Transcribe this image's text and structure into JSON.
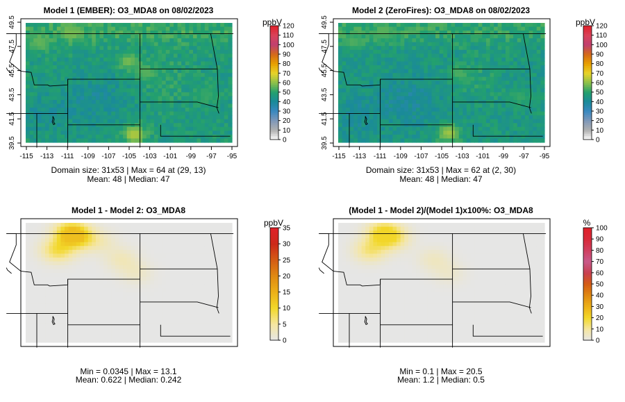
{
  "chart_data": [
    {
      "type": "heatmap",
      "title": "Model 1 (EMBER): O3_MDA8 on 08/02/2023",
      "unit": "ppbV",
      "x_ticks": [
        "-115",
        "-113",
        "-111",
        "-109",
        "-107",
        "-105",
        "-103",
        "-101",
        "-99",
        "-97",
        "-95"
      ],
      "y_ticks": [
        "39.5",
        "41.5",
        "43.5",
        "45.5",
        "47.5",
        "49.5"
      ],
      "xlim": [
        -115,
        -95
      ],
      "ylim": [
        39.5,
        50.0
      ],
      "colorbar_ticks": [
        0,
        10,
        20,
        30,
        40,
        50,
        60,
        70,
        80,
        90,
        100,
        110,
        120
      ],
      "colorbar_max": 120,
      "info_lines": [
        "Domain size: 31x53 | Max = 64 at (29, 13)",
        "Mean: 48 |  Median: 47"
      ],
      "grid": {
        "rows": 31,
        "cols": 53,
        "kind": "o3",
        "base": 47,
        "max": 64
      },
      "hotspots": [
        {
          "lon": -104.2,
          "lat": 40.2,
          "value": 64
        },
        {
          "lon": -110.5,
          "lat": 49.2,
          "value": 58
        },
        {
          "lon": -104.8,
          "lat": 46.6,
          "value": 58
        },
        {
          "lon": -103.0,
          "lat": 45.6,
          "value": 55
        },
        {
          "lon": -113.5,
          "lat": 48.3,
          "value": 56
        },
        {
          "lon": -97.0,
          "lat": 43.5,
          "value": 52
        }
      ]
    },
    {
      "type": "heatmap",
      "title": "Model 2 (ZeroFires): O3_MDA8 on 08/02/2023",
      "unit": "ppbV",
      "x_ticks": [
        "-115",
        "-113",
        "-111",
        "-109",
        "-107",
        "-105",
        "-103",
        "-101",
        "-99",
        "-97",
        "-95"
      ],
      "y_ticks": [
        "39.5",
        "41.5",
        "43.5",
        "45.5",
        "47.5",
        "49.5"
      ],
      "xlim": [
        -115,
        -95
      ],
      "ylim": [
        39.5,
        50.0
      ],
      "colorbar_ticks": [
        0,
        10,
        20,
        30,
        40,
        50,
        60,
        70,
        80,
        90,
        100,
        110,
        120
      ],
      "colorbar_max": 120,
      "info_lines": [
        "Domain size: 31x53 | Max = 62 at (2, 30)",
        "Mean: 48 |  Median: 47"
      ],
      "grid": {
        "rows": 31,
        "cols": 53,
        "kind": "o3",
        "base": 46,
        "max": 62
      },
      "hotspots": [
        {
          "lon": -104.0,
          "lat": 40.3,
          "value": 62
        },
        {
          "lon": -110.5,
          "lat": 49.2,
          "value": 55
        },
        {
          "lon": -103.0,
          "lat": 45.6,
          "value": 54
        },
        {
          "lon": -113.5,
          "lat": 48.3,
          "value": 54
        },
        {
          "lon": -97.0,
          "lat": 43.5,
          "value": 52
        }
      ]
    },
    {
      "type": "heatmap",
      "title": "Model 1 - Model 2: O3_MDA8",
      "unit": "ppbV",
      "xlim": [
        -115,
        -95
      ],
      "ylim": [
        39.5,
        50.0
      ],
      "colorbar_ticks": [
        0,
        5,
        10,
        15,
        20,
        25,
        30,
        35
      ],
      "colorbar_max": 35,
      "info_lines": [
        "Min = 0.0345 | Max = 13.1",
        "Mean: 0.622 |  Median: 0.242"
      ],
      "grid": {
        "rows": 31,
        "cols": 53,
        "kind": "diff",
        "base": 0.05,
        "max": 13.1
      },
      "hotspots": [
        {
          "lon": -110.5,
          "lat": 49.1,
          "value": 13.1
        },
        {
          "lon": -109.5,
          "lat": 48.6,
          "value": 6.5
        },
        {
          "lon": -111.8,
          "lat": 47.6,
          "value": 8.5
        },
        {
          "lon": -105.5,
          "lat": 46.8,
          "value": 3.0
        },
        {
          "lon": -104.0,
          "lat": 45.6,
          "value": 2.2
        },
        {
          "lon": -107.5,
          "lat": 48.3,
          "value": 2.5
        }
      ]
    },
    {
      "type": "heatmap",
      "title": "(Model 1 - Model 2)/(Model 1)x100%: O3_MDA8",
      "unit": "%",
      "xlim": [
        -115,
        -95
      ],
      "ylim": [
        39.5,
        50.0
      ],
      "colorbar_ticks": [
        0,
        10,
        20,
        30,
        40,
        50,
        60,
        70,
        80,
        90,
        100
      ],
      "colorbar_max": 100,
      "info_lines": [
        "Min = 0.1 | Max = 20.5",
        "Mean: 1.2 |  Median: 0.5"
      ],
      "grid": {
        "rows": 31,
        "cols": 53,
        "kind": "diff",
        "base": 0.1,
        "max": 20.5
      },
      "hotspots": [
        {
          "lon": -110.5,
          "lat": 49.1,
          "value": 20.5
        },
        {
          "lon": -109.5,
          "lat": 48.6,
          "value": 11.0
        },
        {
          "lon": -111.8,
          "lat": 47.6,
          "value": 13.0
        },
        {
          "lon": -105.5,
          "lat": 46.8,
          "value": 5.0
        },
        {
          "lon": -104.0,
          "lat": 45.6,
          "value": 3.5
        }
      ]
    }
  ],
  "colors": {
    "o3_scale": [
      "#ffffff",
      "#b0b0b0",
      "#7f98b8",
      "#3a88c0",
      "#1a8a9a",
      "#23a06e",
      "#8cc04a",
      "#e8d42a",
      "#e8a000",
      "#d46a1a",
      "#c04070",
      "#d9435a",
      "#e0202a"
    ],
    "diff_scale": [
      "#e6e6e6",
      "#f5e6a0",
      "#f2d82a",
      "#ecb018",
      "#e08a12",
      "#d45c14",
      "#cc2a1a",
      "#e0202a"
    ],
    "pct_scale": [
      "#e6e6e6",
      "#f5e6a0",
      "#f2d82a",
      "#ecb018",
      "#e08a12",
      "#d45c14",
      "#c84050",
      "#c85a8a",
      "#d04060",
      "#d82a3a",
      "#e0202a"
    ],
    "ocean": "#e6e6e6"
  }
}
